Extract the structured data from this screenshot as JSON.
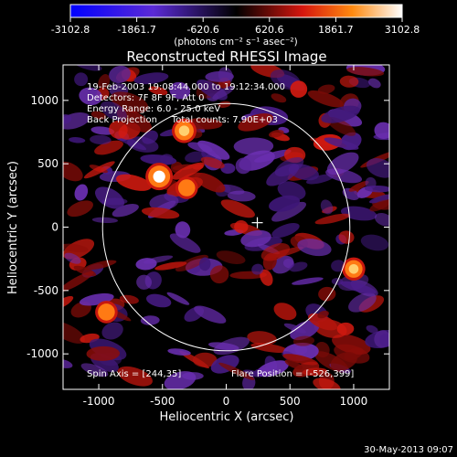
{
  "chart_data": {
    "type": "heatmap",
    "title": "Reconstructed RHESSI Image",
    "xlabel": "Heliocentric X (arcsec)",
    "ylabel": "Heliocentric Y (arcsec)",
    "xlim": [
      -1280,
      1280
    ],
    "ylim": [
      -1280,
      1280
    ],
    "xticks": [
      "-1000",
      "-500",
      "0",
      "500",
      "1000"
    ],
    "xtick_values": [
      -1000,
      -500,
      0,
      500,
      1000
    ],
    "yticks": [
      "-1000",
      "-500",
      "0",
      "500",
      "1000"
    ],
    "ytick_values": [
      -1000,
      -500,
      0,
      500,
      1000
    ],
    "colorbar": {
      "ticks": [
        "-3102.8",
        "-1861.7",
        "-620.6",
        "620.6",
        "1861.7",
        "3102.8"
      ],
      "tick_values": [
        -3102.8,
        -1861.7,
        -620.6,
        620.6,
        1861.7,
        3102.8
      ],
      "range": [
        -3102.8,
        3102.8
      ]
    },
    "units_label": "(photons cm⁻² s⁻¹ asec⁻²)",
    "info_lines": [
      "19-Feb-2003 19:08:44.000 to 19:12:34.000",
      "Detectors: 7F 8F 9F, Att 0",
      "Energy Range: 6.0 - 25.0 keV",
      "Back Projection     Total counts: 7.90E+03"
    ],
    "spin_axis": "Spin Axis = [244,35]",
    "flare_position": "Flare Position = [-526,399]",
    "sources": [
      {
        "x": -526,
        "y": 399,
        "peak": 3102.8
      },
      {
        "x": -330,
        "y": 760,
        "peak": 2300
      },
      {
        "x": -310,
        "y": 310,
        "peak": 1700
      },
      {
        "x": 1000,
        "y": -330,
        "peak": 1900
      },
      {
        "x": -940,
        "y": -670,
        "peak": 1700
      }
    ],
    "solar_disk": {
      "center": [
        0,
        0
      ],
      "radius_arcsec": 970
    },
    "spin_axis_marker": [
      244,
      35
    ],
    "timestamp": "30-May-2013 09:07"
  },
  "colors": {
    "negative_low": "#1a00ff",
    "negative_mid": "#7a3cc8",
    "zero": "#000000",
    "positive_mid": "#e81c10",
    "positive_high": "#ff9a18",
    "positive_peak": "#ffffff"
  }
}
